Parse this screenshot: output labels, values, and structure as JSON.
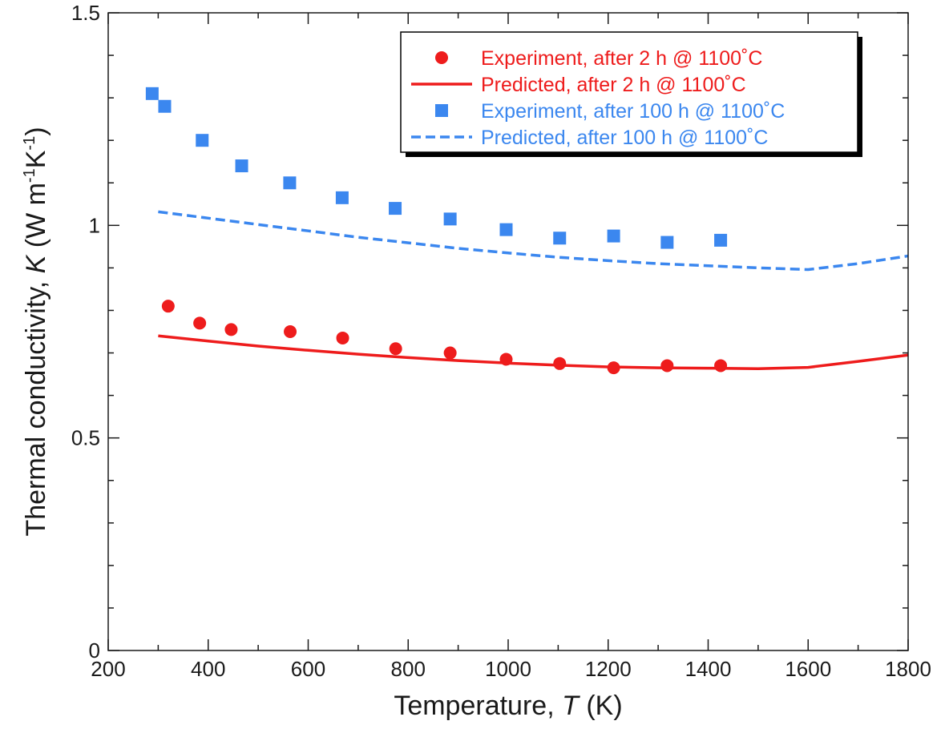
{
  "chart_data": {
    "type": "scatter",
    "xlabel": {
      "prefix": "Temperature, ",
      "symbol": "T",
      "suffix": " (K)"
    },
    "ylabel": {
      "prefix": "Thermal conductivity, ",
      "symbol": "K",
      "unit_open": " (W m",
      "exp1": "-1",
      "mid": "K",
      "exp2": "-1",
      "close": ")"
    },
    "xlim": [
      200,
      1800
    ],
    "ylim": [
      0,
      1.5
    ],
    "xticks": [
      200,
      400,
      600,
      800,
      1000,
      1200,
      1400,
      1600,
      1800
    ],
    "xtick_labels": [
      "200",
      "400",
      "600",
      "800",
      "1000",
      "1200",
      "1400",
      "1600",
      "1800"
    ],
    "yticks": [
      0,
      0.5,
      1,
      1.5
    ],
    "ytick_labels": [
      "0",
      "0.5",
      "1",
      "1.5"
    ],
    "grid": false,
    "legend_position": "top-right",
    "series": [
      {
        "name": "Experiment, after 2 h @ 1100˚C",
        "kind": "points",
        "marker": "circle",
        "color": "#ee1c1c",
        "points": [
          [
            320,
            0.81
          ],
          [
            383,
            0.77
          ],
          [
            446,
            0.755
          ],
          [
            564,
            0.75
          ],
          [
            669,
            0.735
          ],
          [
            775,
            0.71
          ],
          [
            884,
            0.7
          ],
          [
            996,
            0.685
          ],
          [
            1103,
            0.675
          ],
          [
            1211,
            0.665
          ],
          [
            1318,
            0.67
          ],
          [
            1425,
            0.67
          ]
        ]
      },
      {
        "name": "Predicted, after 2 h @ 1100˚C",
        "kind": "line",
        "dash": "solid",
        "color": "#ee1c1c",
        "points": [
          [
            300,
            0.74
          ],
          [
            400,
            0.728
          ],
          [
            500,
            0.716
          ],
          [
            600,
            0.706
          ],
          [
            700,
            0.697
          ],
          [
            800,
            0.689
          ],
          [
            900,
            0.682
          ],
          [
            1000,
            0.676
          ],
          [
            1100,
            0.671
          ],
          [
            1200,
            0.667
          ],
          [
            1300,
            0.665
          ],
          [
            1400,
            0.664
          ],
          [
            1500,
            0.663
          ],
          [
            1600,
            0.666
          ],
          [
            1700,
            0.68
          ],
          [
            1800,
            0.695
          ]
        ]
      },
      {
        "name": "Experiment, after 100 h @ 1100˚C",
        "kind": "points",
        "marker": "square",
        "color": "#3b87ef",
        "points": [
          [
            288,
            1.31
          ],
          [
            313,
            1.28
          ],
          [
            388,
            1.2
          ],
          [
            467,
            1.14
          ],
          [
            563,
            1.1
          ],
          [
            668,
            1.065
          ],
          [
            774,
            1.04
          ],
          [
            884,
            1.015
          ],
          [
            996,
            0.99
          ],
          [
            1103,
            0.97
          ],
          [
            1211,
            0.975
          ],
          [
            1318,
            0.96
          ],
          [
            1425,
            0.965
          ]
        ]
      },
      {
        "name": "Predicted, after 100 h @ 1100˚C",
        "kind": "line",
        "dash": "dashed",
        "color": "#3b87ef",
        "points": [
          [
            300,
            1.032
          ],
          [
            400,
            1.017
          ],
          [
            500,
            1.002
          ],
          [
            600,
            0.987
          ],
          [
            700,
            0.972
          ],
          [
            800,
            0.959
          ],
          [
            900,
            0.946
          ],
          [
            1000,
            0.935
          ],
          [
            1100,
            0.925
          ],
          [
            1200,
            0.917
          ],
          [
            1300,
            0.91
          ],
          [
            1400,
            0.905
          ],
          [
            1500,
            0.9
          ],
          [
            1600,
            0.896
          ],
          [
            1700,
            0.91
          ],
          [
            1800,
            0.928
          ]
        ]
      }
    ]
  }
}
